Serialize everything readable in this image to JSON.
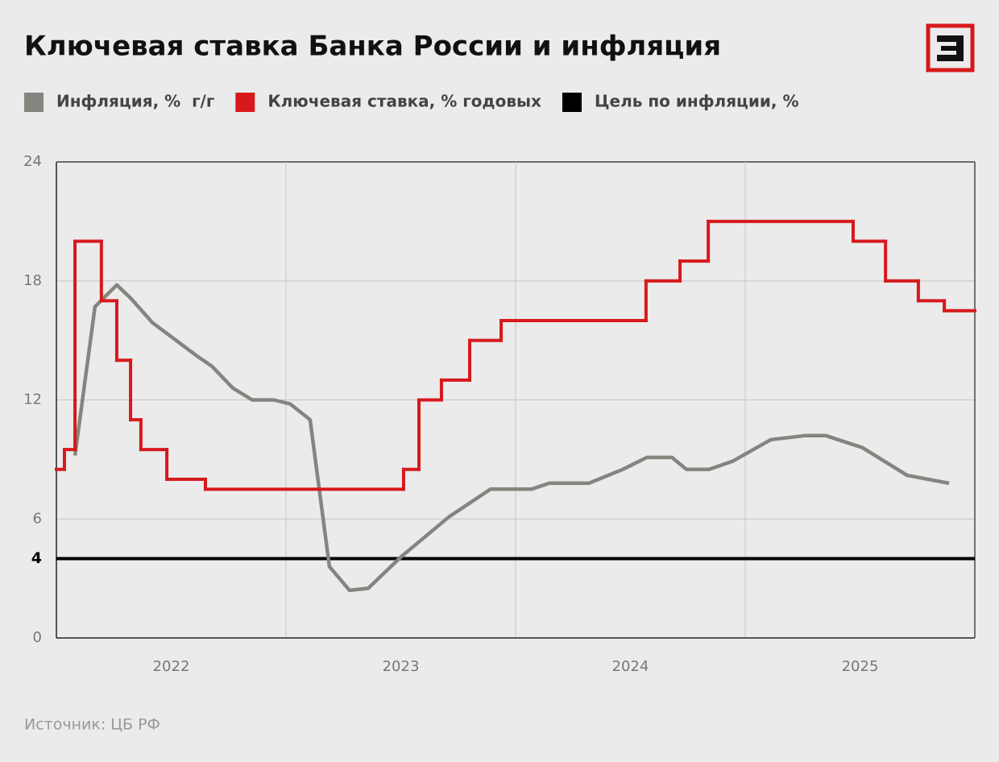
{
  "chart_data": {
    "type": "line",
    "title": "Ключевая ставка Банка России и инфляция",
    "source": "Источник: ЦБ РФ",
    "xlim": [
      2022,
      2026
    ],
    "xticks": [
      {
        "value": 2022.5,
        "label": "2022"
      },
      {
        "value": 2023.5,
        "label": "2023"
      },
      {
        "value": 2024.5,
        "label": "2024"
      },
      {
        "value": 2025.5,
        "label": "2025"
      }
    ],
    "xgrid": [
      2023,
      2024,
      2025
    ],
    "ylim": [
      0,
      24
    ],
    "yticks": [
      0,
      6,
      12,
      18,
      24
    ],
    "grid": true,
    "series": [
      {
        "name": "Инфляция, %  г/г",
        "color": "#858580",
        "style": "line",
        "x": [
          2022.081,
          2022.168,
          2022.263,
          2022.326,
          2022.418,
          2022.614,
          2022.677,
          2022.768,
          2022.853,
          2022.947,
          2023.018,
          2023.105,
          2023.189,
          2023.277,
          2023.358,
          2023.502,
          2023.709,
          2023.891,
          2024.07,
          2024.147,
          2024.319,
          2024.467,
          2024.572,
          2024.681,
          2024.744,
          2024.842,
          2024.944,
          2025.112,
          2025.26,
          2025.351,
          2025.509,
          2025.705,
          2025.888
        ],
        "values": [
          9.2,
          16.7,
          17.8,
          17.1,
          15.9,
          14.2,
          13.7,
          12.6,
          12.0,
          12.0,
          11.8,
          11.0,
          3.6,
          2.4,
          2.5,
          4.1,
          6.1,
          7.5,
          7.5,
          7.8,
          7.8,
          8.5,
          9.1,
          9.1,
          8.5,
          8.5,
          8.9,
          10.0,
          10.2,
          10.2,
          9.6,
          8.2,
          7.8
        ]
      },
      {
        "name": "Ключевая ставка, % годовых",
        "color": "#d7191c",
        "style": "step",
        "x": [
          2022.0,
          2022.035,
          2022.081,
          2022.196,
          2022.263,
          2022.323,
          2022.368,
          2022.481,
          2022.649,
          2023.512,
          2023.579,
          2023.677,
          2023.8,
          2023.937,
          2024.568,
          2024.716,
          2024.839,
          2025.47,
          2025.611,
          2025.754,
          2025.867
        ],
        "values": [
          8.5,
          9.5,
          20,
          17,
          14,
          11,
          9.5,
          8,
          7.5,
          8.5,
          12,
          13,
          15,
          16,
          18,
          19,
          21,
          20,
          18,
          17,
          16.5
        ]
      },
      {
        "name": "Цель по инфляции, %",
        "color": "#000000",
        "style": "hline",
        "values": [
          4
        ]
      }
    ]
  }
}
